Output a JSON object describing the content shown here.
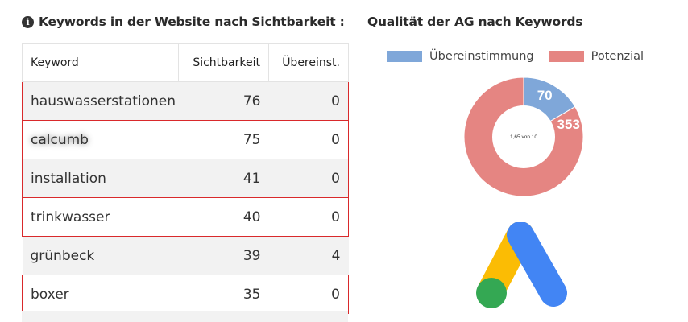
{
  "left": {
    "title": "Keywords in der Website nach Sichtbarkeit :",
    "info_icon": "info-circle-icon",
    "table": {
      "headers": [
        "Keyword",
        "Sichtbarkeit",
        "Übereinst."
      ],
      "rows": [
        {
          "keyword": "hauswasserstationen",
          "sichtbarkeit": "76",
          "uebereinst": "0",
          "highlight": true,
          "striped": true
        },
        {
          "keyword": "calcumb",
          "sichtbarkeit": "75",
          "uebereinst": "0",
          "highlight": true,
          "striped": false,
          "blurred": true
        },
        {
          "keyword": "installation",
          "sichtbarkeit": "41",
          "uebereinst": "0",
          "highlight": true,
          "striped": true
        },
        {
          "keyword": "trinkwasser",
          "sichtbarkeit": "40",
          "uebereinst": "0",
          "highlight": true,
          "striped": false
        },
        {
          "keyword": "grünbeck",
          "sichtbarkeit": "39",
          "uebereinst": "4",
          "highlight": false,
          "striped": true
        },
        {
          "keyword": "boxer",
          "sichtbarkeit": "35",
          "uebereinst": "0",
          "highlight": true,
          "striped": false
        }
      ]
    }
  },
  "right": {
    "title": "Qualität der AG nach Keywords",
    "logo": "google-ads-logo"
  },
  "chart_data": {
    "type": "pie",
    "series": [
      {
        "name": "Übereinstimmung",
        "value": 70,
        "color": "#7fa7d9"
      },
      {
        "name": "Potenzial",
        "value": 353,
        "color": "#e58582"
      }
    ],
    "center_text": "1,65 von 10",
    "legend_position": "top"
  },
  "colors": {
    "highlight_border": "#d9292b",
    "stripe": "#f2f2f2",
    "ads_blue": "#4285f4",
    "ads_yellow": "#fbbc04",
    "ads_green": "#34a853"
  }
}
